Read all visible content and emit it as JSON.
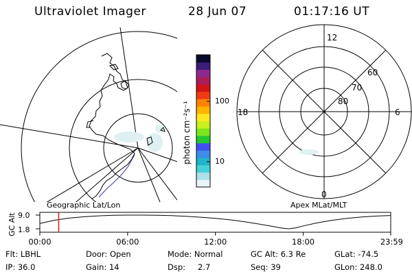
{
  "header": {
    "instrument": "Ultraviolet Imager",
    "date": "28 Jun 07",
    "time": "01:17:16 UT"
  },
  "left_panel": {
    "projection": "Geographic Lat/Lon"
  },
  "right_panel": {
    "projection": "Apex MLat/MLT",
    "mlt_labels": {
      "top": "12",
      "bottom": "0",
      "left": "18",
      "right": "6"
    },
    "lat_labels": [
      "60",
      "70",
      "80"
    ]
  },
  "colorbar": {
    "unit_label": "photon cm⁻²s⁻¹",
    "ticks": [
      "100",
      "10"
    ],
    "colors": [
      "#e8f4f6",
      "#aee0ea",
      "#46d2d8",
      "#22b4c8",
      "#3c8ce8",
      "#4050f0",
      "#22c832",
      "#7ce61e",
      "#c8f01e",
      "#ffe61e",
      "#ffb400",
      "#ff8200",
      "#f03c14",
      "#d21414",
      "#aa1e5a",
      "#8c2a8c",
      "#3c1e78",
      "#0a0a2a"
    ]
  },
  "timeline": {
    "y_axis_label": "GC Alt",
    "y_ticks": [
      "9.0",
      "1.8"
    ],
    "x_ticks": [
      "00:00",
      "06:00",
      "12:00",
      "18:00",
      "23:59"
    ],
    "current_time_hours": 1.29,
    "alt_profile": {
      "x_hours": [
        0,
        1,
        2,
        3,
        4,
        5,
        6,
        7,
        8,
        9,
        10,
        11,
        12,
        13,
        14,
        15,
        16,
        16.5,
        17,
        17.5,
        18,
        19,
        20,
        21,
        22,
        23,
        23.98
      ],
      "y_re": [
        4.6,
        6.3,
        7.4,
        8.1,
        8.6,
        8.9,
        9.0,
        9.0,
        8.9,
        8.7,
        8.4,
        7.9,
        7.3,
        6.5,
        5.5,
        4.3,
        2.9,
        2.2,
        1.8,
        2.3,
        3.3,
        5.0,
        6.3,
        7.3,
        8.0,
        8.5,
        8.8
      ]
    },
    "y_range": [
      1.8,
      9.0
    ]
  },
  "info": {
    "flt": "Flt: LBHL",
    "ip": "IP: 36.0",
    "door": "Door: Open",
    "gain": "Gain: 14",
    "mode": "Mode: Normal",
    "dsp_label": "Dsp:",
    "dsp_value": "2.7",
    "gc_alt": "GC Alt: 6.3 Re",
    "seq": "Seq: 39",
    "glat": "GLat: -74.5",
    "glon": "GLon: 248.0"
  }
}
